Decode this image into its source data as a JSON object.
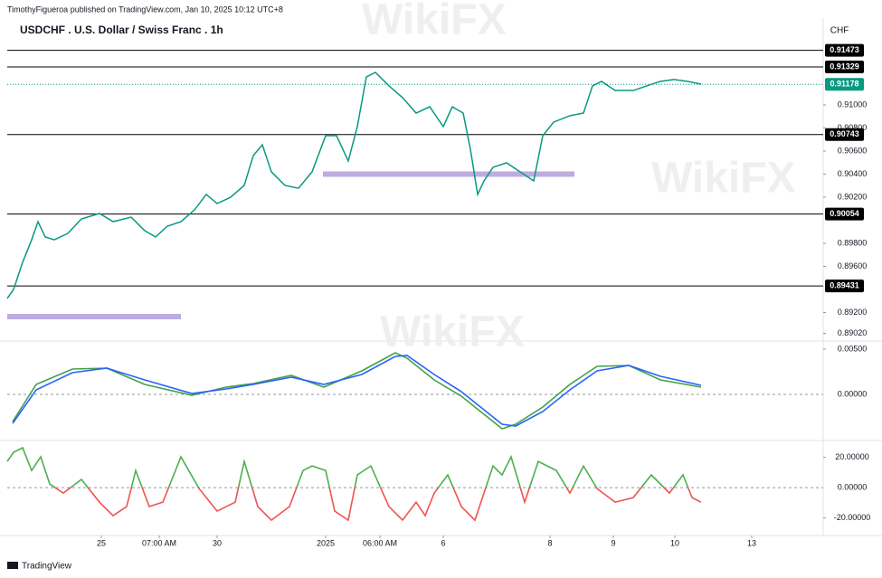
{
  "header": {
    "published": "TimothyFigueroa published on TradingView.com, Jan 10, 2025 10:12 UTC+8",
    "logo": "TradingView",
    "watermark": "WikiFX"
  },
  "chart_data": [
    {
      "type": "line",
      "title": "USDCHF . U.S. Dollar / Swiss Franc . 1h",
      "currency": "CHF",
      "xlim": [
        0,
        225.5
      ],
      "ylim": [
        0.88969,
        0.9158
      ],
      "yticks": [
        {
          "value": 0.91,
          "label": "0.91000"
        },
        {
          "value": 0.908,
          "label": "0.90800"
        },
        {
          "value": 0.906,
          "label": "0.90600"
        },
        {
          "value": 0.904,
          "label": "0.90400"
        },
        {
          "value": 0.902,
          "label": "0.90200"
        },
        {
          "value": 0.898,
          "label": "0.89800"
        },
        {
          "value": 0.896,
          "label": "0.89600"
        },
        {
          "value": 0.892,
          "label": "0.89200"
        },
        {
          "value": 0.8902,
          "label": "0.89020"
        }
      ],
      "x": [
        0,
        1.75,
        4.25,
        6.75,
        8.5,
        10.5,
        13,
        16.75,
        20.5,
        25.5,
        29.25,
        34.25,
        38,
        41,
        44.25,
        48,
        51.75,
        55,
        58,
        61.75,
        65.5,
        68,
        70.5,
        73,
        76.75,
        80.5,
        84.25,
        88,
        91,
        94.25,
        96.75,
        99.25,
        101.75,
        105.5,
        109.25,
        113,
        116.75,
        120.5,
        123,
        126,
        128,
        130,
        131.75,
        134.25,
        138,
        141.75,
        145.5,
        148,
        151,
        155.5,
        159.25,
        161.75,
        164.25,
        168,
        173,
        176.75,
        180.5,
        184.25,
        188,
        191.75
      ],
      "series": [
        {
          "color": "#089981",
          "values": [
            0.89322,
            0.894,
            0.89635,
            0.89831,
            0.89988,
            0.89855,
            0.89831,
            0.89886,
            0.90012,
            0.90059,
            0.89988,
            0.90027,
            0.8991,
            0.89855,
            0.89949,
            0.89988,
            0.9009,
            0.90224,
            0.90145,
            0.902,
            0.90302,
            0.90561,
            0.90655,
            0.9042,
            0.90302,
            0.90278,
            0.9042,
            0.90733,
            0.90733,
            0.90514,
            0.90812,
            0.91243,
            0.91282,
            0.91165,
            0.91063,
            0.90929,
            0.90984,
            0.90812,
            0.90984,
            0.90929,
            0.90616,
            0.90224,
            0.90341,
            0.90459,
            0.90498,
            0.9042,
            0.90341,
            0.90733,
            0.90851,
            0.90906,
            0.90929,
            0.91165,
            0.91204,
            0.91125,
            0.91125,
            0.91165,
            0.91204,
            0.9122,
            0.91204,
            0.9118
          ]
        }
      ],
      "levels": [
        {
          "value": 0.91473,
          "color": "#000000"
        },
        {
          "value": 0.91329,
          "color": "#000000"
        },
        {
          "value": 0.91178,
          "color": "#089981"
        },
        {
          "value": 0.90743,
          "color": "#000000"
        },
        {
          "value": 0.90054,
          "color": "#000000"
        },
        {
          "value": 0.89431,
          "color": "#000000"
        }
      ],
      "zones": [
        {
          "x": [
            87.25,
            156.75
          ],
          "y": 0.904,
          "color": "#b39ddb"
        },
        {
          "x": [
            0,
            48
          ],
          "y": 0.89165,
          "color": "#b39ddb"
        }
      ]
    },
    {
      "type": "line",
      "xlim": [
        0,
        225.5
      ],
      "ylim": [
        -0.0049,
        0.0056
      ],
      "yticks": [
        {
          "value": 0.005,
          "label": "0.00500"
        },
        {
          "value": 0,
          "label": "0.00000"
        }
      ],
      "x": [
        1.5,
        8,
        18,
        27.5,
        38,
        51,
        60.5,
        68,
        78.5,
        87.5,
        98,
        107.25,
        110.5,
        118,
        125.5,
        136.75,
        140.5,
        148,
        155.5,
        163,
        171.75,
        180.5,
        191.75
      ],
      "series": [
        {
          "color": "#43a047",
          "values": [
            -0.003,
            0.0011,
            0.0028,
            0.0029,
            0.0011,
            -0.0001,
            0.0008,
            0.0012,
            0.0021,
            0.0008,
            0.0026,
            0.0046,
            0.004,
            0.0016,
            -0.0002,
            -0.0038,
            -0.0033,
            -0.0014,
            0.0011,
            0.0031,
            0.0032,
            0.0016,
            0.0008
          ]
        },
        {
          "color": "#2962ff",
          "values": [
            -0.0032,
            0.0005,
            0.0024,
            0.0029,
            0.0016,
            0.0001,
            0.0006,
            0.0011,
            0.0019,
            0.0011,
            0.0022,
            0.0042,
            0.0043,
            0.0022,
            0.0003,
            -0.0033,
            -0.0035,
            -0.0019,
            0.0005,
            0.0026,
            0.0032,
            0.002,
            0.001
          ]
        }
      ]
    },
    {
      "type": "line",
      "xlim": [
        0,
        225.5
      ],
      "ylim": [
        -30.4,
        29.3
      ],
      "yticks": [
        {
          "value": 20,
          "label": "20.00000"
        },
        {
          "value": 0,
          "label": "0.00000"
        },
        {
          "value": -20,
          "label": "-20.00000"
        }
      ],
      "xticks": [
        {
          "value": 26,
          "label": "25"
        },
        {
          "value": 42,
          "label": "07:00 AM"
        },
        {
          "value": 58,
          "label": "30"
        },
        {
          "value": 88,
          "label": "2025"
        },
        {
          "value": 103,
          "label": "06:00 AM"
        },
        {
          "value": 120.5,
          "label": "6"
        },
        {
          "value": 150,
          "label": "8"
        },
        {
          "value": 167.5,
          "label": "9"
        },
        {
          "value": 184.5,
          "label": "10"
        },
        {
          "value": 205.75,
          "label": "13"
        }
      ],
      "x": [
        0,
        1.75,
        4.25,
        6.75,
        9.25,
        11.75,
        15.5,
        20.5,
        25.5,
        29.25,
        33,
        35.5,
        39.25,
        43,
        48,
        53,
        58,
        63,
        65.5,
        69.25,
        73,
        78,
        81.75,
        84.25,
        88,
        90.5,
        94.25,
        96.75,
        100.5,
        105.5,
        109.25,
        113,
        115.5,
        118,
        121.75,
        125.5,
        129.25,
        134.25,
        136.75,
        139.25,
        143,
        146.75,
        151.75,
        155.5,
        159.25,
        163,
        168,
        173,
        178,
        183,
        186.75,
        189.25,
        191.75
      ],
      "series": [
        {
          "color_above": "#4caf50",
          "color_below": "#ef5350",
          "values": [
            17.3,
            23.3,
            26.3,
            11.3,
            20.3,
            2.4,
            -3.6,
            5.4,
            -9.6,
            -18.5,
            -12.5,
            11.3,
            -12.5,
            -9.6,
            20.3,
            -0.6,
            -15.5,
            -9.6,
            17.3,
            -12.5,
            -21.5,
            -12.5,
            11.3,
            14.3,
            11.3,
            -15.5,
            -21.5,
            8.4,
            14.3,
            -12.5,
            -21.5,
            -9.6,
            -18.5,
            -3.6,
            8.4,
            -12.5,
            -21.5,
            14.3,
            8.4,
            20.3,
            -9.6,
            17.3,
            11.3,
            -3.6,
            14.3,
            -0.6,
            -9.6,
            -6.6,
            8.4,
            -3.6,
            8.4,
            -6.6,
            -9.6
          ]
        }
      ]
    }
  ]
}
